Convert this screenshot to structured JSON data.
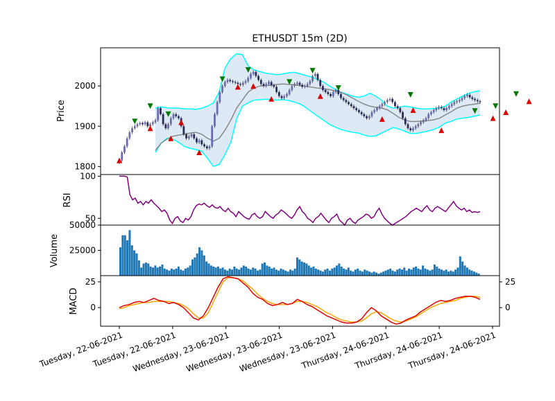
{
  "chart_data": {
    "title": "ETHUSDT 15m (2D)",
    "type": "candlestick",
    "x_tick_labels": [
      "Tuesday, 22-06-2021",
      "Tuesday, 22-06-2021",
      "Wednesday, 23-06-2021",
      "Wednesday, 23-06-2021",
      "Wednesday, 23-06-2021",
      "Thursday, 24-06-2021",
      "Thursday, 24-06-2021",
      "Thursday, 24-06-2021"
    ],
    "panels": {
      "price": {
        "ylabel": "Price",
        "ylim": [
          1780,
          2095
        ],
        "yticks": [
          1800,
          1900,
          2000
        ],
        "close_series": [
          1815,
          1835,
          1850,
          1870,
          1885,
          1895,
          1900,
          1905,
          1908,
          1905,
          1910,
          1900,
          1905,
          1910,
          1915,
          1945,
          1930,
          1905,
          1895,
          1905,
          1920,
          1930,
          1925,
          1920,
          1900,
          1880,
          1870,
          1875,
          1880,
          1870,
          1860,
          1865,
          1855,
          1850,
          1845,
          1850,
          1900,
          1930,
          1960,
          1985,
          2000,
          2010,
          2015,
          2012,
          2010,
          2008,
          2005,
          2003,
          2008,
          2012,
          2020,
          2030,
          2035,
          2025,
          2015,
          2005,
          2000,
          2005,
          2010,
          2002,
          1998,
          1985,
          1975,
          1970,
          1975,
          1980,
          1990,
          2000,
          2005,
          2008,
          2003,
          1998,
          2000,
          2005,
          2012,
          2025,
          2030,
          2015,
          2000,
          1990,
          1985,
          1980,
          1975,
          1985,
          1990,
          1980,
          1970,
          1965,
          1960,
          1955,
          1950,
          1945,
          1940,
          1935,
          1930,
          1925,
          1920,
          1925,
          1935,
          1940,
          1945,
          1950,
          1955,
          1960,
          1965,
          1968,
          1960,
          1950,
          1945,
          1935,
          1920,
          1905,
          1895,
          1890,
          1895,
          1900,
          1905,
          1910,
          1915,
          1920,
          1930,
          1935,
          1940,
          1945,
          1948,
          1945,
          1940,
          1945,
          1950,
          1955,
          1960,
          1962,
          1965,
          1970,
          1975,
          1978,
          1972,
          1968,
          1965,
          1962,
          1960
        ],
        "bollinger_middle": [
          1840,
          1858,
          1868,
          1875,
          1878,
          1880,
          1883,
          1885,
          1880,
          1870,
          1863,
          1870,
          1890,
          1915,
          1945,
          1965,
          1985,
          1995,
          2000,
          2001,
          2002,
          2004,
          2005,
          2004,
          2003,
          2001,
          1999,
          1997,
          1995,
          1993,
          1991,
          1988,
          1984,
          1978,
          1970,
          1962,
          1955,
          1950,
          1947,
          1945,
          1941,
          1932,
          1922,
          1915,
          1912,
          1912,
          1913,
          1914,
          1916,
          1920,
          1928,
          1936,
          1945,
          1950,
          1953,
          1955,
          1957
        ],
        "bollinger_upper": [
          1945,
          1948,
          1946,
          1945,
          1945,
          1943,
          1943,
          1942,
          1945,
          1950,
          1958,
          1985,
          2045,
          2068,
          2080,
          2078,
          2050,
          2040,
          2036,
          2032,
          2030,
          2028,
          2030,
          2033,
          2034,
          2030,
          2026,
          2022,
          2016,
          2010,
          2000,
          1992,
          1985,
          1980,
          1975,
          1972,
          1975,
          1982,
          1975,
          1965,
          1950,
          1945,
          1947,
          1950,
          1948,
          1945,
          1943,
          1943,
          1944,
          1945,
          1950,
          1960,
          1968,
          1975,
          1982,
          1986,
          1988
        ],
        "bollinger_lower": [
          1835,
          1858,
          1870,
          1868,
          1860,
          1850,
          1845,
          1842,
          1838,
          1820,
          1800,
          1805,
          1830,
          1860,
          1918,
          1950,
          1958,
          1965,
          1966,
          1967,
          1966,
          1965,
          1966,
          1964,
          1960,
          1955,
          1946,
          1935,
          1925,
          1915,
          1905,
          1898,
          1892,
          1888,
          1885,
          1883,
          1878,
          1875,
          1876,
          1883,
          1890,
          1897,
          1893,
          1888,
          1882,
          1882,
          1885,
          1888,
          1892,
          1898,
          1908,
          1912,
          1918,
          1920,
          1922,
          1925,
          1928
        ],
        "buy_markers": [
          [
            0,
            1815
          ],
          [
            12,
            1895
          ],
          [
            20,
            1870
          ],
          [
            24,
            1910
          ],
          [
            31,
            1835
          ],
          [
            46,
            1998
          ],
          [
            52,
            2000
          ],
          [
            59,
            1968
          ],
          [
            78,
            1975
          ],
          [
            102,
            1918
          ],
          [
            114,
            1940
          ],
          [
            125,
            1890
          ],
          [
            145,
            1920
          ],
          [
            150,
            1935
          ],
          [
            159,
            1962
          ]
        ],
        "sell_markers": [
          [
            6,
            1912
          ],
          [
            12,
            1950
          ],
          [
            19,
            1930
          ],
          [
            40,
            2017
          ],
          [
            50,
            2040
          ],
          [
            66,
            2010
          ],
          [
            75,
            2038
          ],
          [
            85,
            1995
          ],
          [
            113,
            1978
          ],
          [
            138,
            1938
          ],
          [
            146,
            1950
          ],
          [
            154,
            1980
          ]
        ]
      },
      "rsi": {
        "ylabel": "RSI",
        "ylim": [
          42,
          102
        ],
        "yticks": [
          50,
          100
        ],
        "values": [
          100,
          100,
          100,
          99,
          78,
          72,
          74,
          68,
          70,
          66,
          70,
          68,
          72,
          68,
          65,
          62,
          58,
          60,
          56,
          48,
          44,
          50,
          52,
          47,
          45,
          50,
          48,
          52,
          60,
          65,
          67,
          66,
          68,
          65,
          63,
          66,
          63,
          62,
          64,
          60,
          58,
          62,
          58,
          56,
          52,
          58,
          55,
          52,
          50,
          49,
          54,
          56,
          52,
          50,
          52,
          58,
          55,
          52,
          50,
          54,
          56,
          60,
          58,
          55,
          52,
          50,
          54,
          60,
          64,
          58,
          55,
          50,
          48,
          45,
          50,
          52,
          56,
          52,
          48,
          45,
          50,
          52,
          55,
          48,
          45,
          42,
          48,
          50,
          46,
          44,
          48,
          50,
          52,
          55,
          54,
          50,
          52,
          58,
          62,
          55,
          50,
          47,
          44,
          42,
          44,
          46,
          48,
          50,
          52,
          55,
          58,
          60,
          62,
          60,
          58,
          62,
          65,
          60,
          58,
          62,
          64,
          62,
          60,
          58,
          62,
          66,
          70,
          65,
          62,
          60,
          62,
          58,
          60,
          57,
          58,
          57,
          58
        ]
      },
      "volume": {
        "ylabel": "Volume",
        "ylim": [
          0,
          50000
        ],
        "yticks": [
          25000,
          50000
        ],
        "values": [
          28000,
          40000,
          40000,
          35000,
          45000,
          30000,
          25000,
          22000,
          15000,
          8000,
          12000,
          13000,
          12000,
          9000,
          8000,
          10000,
          8000,
          9000,
          11000,
          7000,
          6000,
          5000,
          7000,
          6000,
          7000,
          9000,
          6000,
          5000,
          7000,
          8000,
          10000,
          16000,
          18000,
          22000,
          28000,
          25000,
          20000,
          14000,
          12000,
          10000,
          9000,
          8000,
          9000,
          7000,
          8000,
          6000,
          5000,
          7000,
          6000,
          9000,
          7000,
          6000,
          8000,
          10000,
          9000,
          7000,
          6000,
          8000,
          7000,
          5000,
          6000,
          12000,
          13000,
          10000,
          9000,
          7000,
          8000,
          6000,
          5000,
          7000,
          6000,
          5000,
          4000,
          6000,
          5000,
          7000,
          18000,
          16000,
          14000,
          13000,
          12000,
          10000,
          8000,
          9000,
          7000,
          6000,
          5000,
          4000,
          6000,
          7000,
          5000,
          7000,
          8000,
          10000,
          12000,
          9000,
          7000,
          6000,
          8000,
          5000,
          4000,
          6000,
          7000,
          5000,
          4000,
          6000,
          5000,
          4000,
          3000,
          4000,
          3000,
          2000,
          3000,
          4000,
          5000,
          6000,
          7000,
          5000,
          4000,
          6000,
          7000,
          6000,
          8000,
          5000,
          7000,
          6000,
          8000,
          9000,
          7000,
          6000,
          10000,
          7000,
          6000,
          5000,
          6000,
          11000,
          9000,
          7000,
          6000,
          5000,
          6000,
          4000,
          5000,
          4000,
          6000,
          8000,
          19000,
          14000,
          10000,
          8000,
          6000,
          5000,
          4000,
          3000,
          2000
        ]
      },
      "macd": {
        "ylabel": "MACD",
        "ylim": [
          -18,
          31
        ],
        "yticks": [
          0,
          25
        ],
        "right_yticks": [
          0,
          25
        ],
        "macd_line": [
          0,
          2,
          3,
          5,
          6,
          5,
          7,
          9,
          7,
          6,
          4,
          5,
          3,
          0,
          -5,
          -10,
          -12,
          -8,
          0,
          10,
          20,
          28,
          30,
          29,
          28,
          24,
          20,
          14,
          10,
          8,
          4,
          2,
          3,
          5,
          3,
          4,
          8,
          6,
          3,
          1,
          -2,
          -5,
          -8,
          -10,
          -12,
          -14,
          -15,
          -15,
          -14,
          -11,
          -5,
          0,
          -3,
          -8,
          -11,
          -14,
          -16,
          -15,
          -12,
          -10,
          -8,
          -4,
          -1,
          2,
          5,
          7,
          6,
          7,
          9,
          10,
          11,
          11,
          10,
          8
        ],
        "signal_line": [
          -1,
          0,
          2,
          3,
          4,
          5,
          5,
          6,
          6,
          6,
          6,
          5,
          4,
          2,
          -1,
          -6,
          -10,
          -10,
          -5,
          5,
          15,
          25,
          29,
          29,
          28,
          26,
          22,
          18,
          13,
          9,
          6,
          4,
          3,
          3,
          3,
          4,
          6,
          6,
          5,
          3,
          1,
          -2,
          -5,
          -7,
          -10,
          -12,
          -13,
          -14,
          -14,
          -13,
          -10,
          -6,
          -4,
          -5,
          -8,
          -11,
          -13,
          -14,
          -13,
          -11,
          -9,
          -6,
          -3,
          0,
          2,
          4,
          5,
          6,
          7,
          9,
          10,
          11,
          11,
          10
        ]
      }
    }
  }
}
